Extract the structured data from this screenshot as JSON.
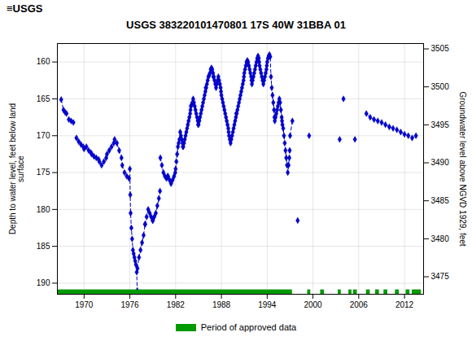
{
  "chart_data": {
    "type": "line",
    "title": "USGS 383220101470801 17S 40W 31BBA 01",
    "annotations": [
      "≡USGS"
    ],
    "ylabel": "Depth to water level, feet below land\nsurface",
    "y2label": "Groundwater level above NGVD 1929, feet",
    "xlim": [
      1966.5,
      2014.5
    ],
    "xticks": [
      1970,
      1976,
      1982,
      1988,
      1994,
      2000,
      2006,
      2012
    ],
    "ylim": [
      191.5,
      157.5
    ],
    "yticks": [
      160,
      165,
      170,
      175,
      180,
      185,
      190
    ],
    "y2lim": [
      3472.7,
      3505.7
    ],
    "y2ticks": [
      3475,
      3480,
      3485,
      3490,
      3495,
      3500,
      3505
    ],
    "grid": true,
    "legend": "bottom",
    "series": [
      {
        "type": "line",
        "color": "#0000cc",
        "line_style": "dashed",
        "marker": "diamond",
        "x": [
          1967.0,
          1967.3,
          1967.5,
          1967.7,
          null,
          1968.0,
          1968.3,
          1968.6,
          null,
          1969.0,
          1969.3,
          1969.6,
          1969.9,
          null,
          1970.0,
          1970.3,
          1970.6,
          1970.9,
          null,
          1971.0,
          1971.3,
          1971.6,
          1971.9,
          null,
          1972.0,
          1972.3,
          1972.6,
          1972.9,
          null,
          1973.0,
          1973.3,
          1973.6,
          1973.9,
          null,
          1974.0,
          1974.3,
          1974.6,
          1974.9,
          null,
          1975.0,
          1975.3,
          1975.6,
          1975.9,
          null,
          1976.0,
          1976.05,
          1976.1,
          1976.2,
          1976.3,
          1976.4,
          1976.5,
          1976.6,
          1976.7,
          1976.8,
          1976.9,
          1976.97,
          null,
          1977.0,
          1977.2,
          1977.4,
          1977.6,
          1977.8,
          1978.0,
          null,
          1978.0,
          1978.2,
          1978.4,
          1978.6,
          1978.8,
          1979.0,
          null,
          1979.0,
          1979.2,
          1979.4,
          1979.6,
          1979.8,
          1979.95,
          null,
          1980.0,
          1980.2,
          1980.4,
          1980.6,
          1980.8,
          1980.95,
          null,
          1981.0,
          1981.2,
          1981.4,
          1981.6,
          1981.8,
          1981.95,
          null,
          1982.0,
          1982.1,
          1982.2,
          1982.3,
          1982.4,
          1982.5,
          1982.6,
          1982.7,
          1982.8,
          1982.9,
          1982.95,
          null,
          1983.0,
          1983.1,
          1983.2,
          1983.3,
          1983.4,
          1983.5,
          1983.6,
          1983.7,
          1983.8,
          1983.9,
          1983.95,
          null,
          1984.0,
          1984.1,
          1984.2,
          1984.3,
          1984.4,
          1984.5,
          1984.6,
          1984.7,
          1984.8,
          1984.9,
          1984.95,
          null,
          1985.0,
          1985.1,
          1985.2,
          1985.3,
          1985.4,
          1985.5,
          1985.6,
          1985.7,
          1985.8,
          1985.9,
          1985.95,
          null,
          1986.0,
          1986.1,
          1986.2,
          1986.3,
          1986.4,
          1986.5,
          1986.6,
          1986.7,
          1986.8,
          1986.9,
          1986.95,
          null,
          1987.0,
          1987.1,
          1987.2,
          1987.3,
          1987.4,
          1987.5,
          1987.6,
          1987.7,
          1987.8,
          1987.9,
          1987.95,
          null,
          1988.0,
          1988.1,
          1988.2,
          1988.3,
          1988.4,
          1988.5,
          1988.6,
          1988.7,
          1988.8,
          1988.9,
          1988.95,
          null,
          1989.0,
          1989.1,
          1989.2,
          1989.3,
          1989.4,
          1989.5,
          1989.6,
          1989.7,
          1989.8,
          1989.9,
          1989.95,
          null,
          1990.0,
          1990.1,
          1990.2,
          1990.3,
          1990.4,
          1990.5,
          1990.6,
          1990.7,
          1990.8,
          1990.9,
          1990.95,
          null,
          1991.0,
          1991.1,
          1991.2,
          1991.3,
          1991.4,
          1991.5,
          1991.6,
          1991.7,
          1991.8,
          1991.9,
          1991.95,
          null,
          1992.0,
          1992.1,
          1992.2,
          1992.3,
          1992.4,
          1992.5,
          1992.6,
          1992.7,
          1992.8,
          1992.9,
          1992.95,
          null,
          1993.0,
          1993.1,
          1993.2,
          1993.3,
          1993.4,
          1993.5,
          1993.6,
          1993.7,
          1993.8,
          1993.9,
          1993.95,
          null,
          1994.0,
          1994.1,
          1994.2,
          1994.3,
          1994.4,
          1994.5,
          1994.6,
          1994.7,
          1994.8,
          1994.9,
          1994.95,
          null,
          1995.0,
          1995.1,
          1995.2,
          1995.3,
          1995.4,
          1995.5,
          1995.6,
          1995.7,
          1995.8,
          1995.9,
          1995.95,
          null,
          1996.0,
          1996.1,
          1996.2,
          1996.3,
          1996.4,
          1996.5,
          1996.6,
          1996.7,
          1996.8,
          1996.9,
          1996.95,
          null,
          1997.0,
          1997.3,
          null,
          1998.0,
          null,
          1999.5,
          null,
          2003.5,
          null,
          2004.0,
          null,
          2005.5,
          null,
          2007.0,
          2007.5,
          2008.0,
          2008.5,
          2009.0,
          2009.5,
          2010.0,
          2010.5,
          2011.0,
          2011.5,
          2012.0,
          2012.5,
          2013.0,
          2013.5
        ],
        "values": [
          165.1,
          166.5,
          166.8,
          167.0,
          null,
          167.8,
          168.0,
          168.2,
          null,
          170.3,
          170.8,
          171.2,
          171.5,
          null,
          171.8,
          171.5,
          172.0,
          172.3,
          null,
          172.5,
          172.8,
          173.0,
          173.2,
          null,
          173.5,
          174.0,
          173.5,
          173.0,
          null,
          172.5,
          172.0,
          171.5,
          171.0,
          null,
          170.5,
          171.0,
          172.0,
          173.0,
          null,
          174.0,
          175.0,
          175.5,
          175.8,
          null,
          174.5,
          178.0,
          180.5,
          182.5,
          184.0,
          185.5,
          186.0,
          186.5,
          187.0,
          187.5,
          188.5,
          191.0,
          null,
          188.0,
          186.5,
          185.5,
          184.5,
          183.5,
          182.0,
          null,
          182.0,
          181.0,
          180.0,
          180.5,
          181.0,
          181.5,
          null,
          181.5,
          181.0,
          180.5,
          179.5,
          178.5,
          177.5,
          null,
          173.0,
          174.0,
          175.0,
          175.5,
          175.8,
          175.5,
          null,
          175.5,
          176.0,
          176.5,
          176.0,
          175.5,
          175.0,
          null,
          174.5,
          173.5,
          172.5,
          171.5,
          171.0,
          170.5,
          169.5,
          170.0,
          170.5,
          171.0,
          171.5,
          null,
          171.5,
          171.0,
          170.5,
          170.0,
          169.5,
          169.0,
          168.5,
          168.0,
          167.5,
          167.0,
          166.5,
          null,
          166.0,
          165.8,
          165.5,
          165.0,
          165.5,
          166.0,
          166.5,
          167.0,
          167.5,
          168.0,
          168.5,
          null,
          168.5,
          168.0,
          167.5,
          167.0,
          166.5,
          166.0,
          165.5,
          165.0,
          164.5,
          164.0,
          163.5,
          null,
          163.5,
          163.0,
          162.5,
          162.0,
          161.8,
          161.5,
          161.0,
          160.8,
          161.0,
          161.5,
          162.0,
          null,
          162.0,
          162.5,
          163.0,
          163.5,
          163.0,
          162.5,
          162.0,
          162.5,
          163.0,
          163.5,
          164.0,
          null,
          164.5,
          165.0,
          165.5,
          166.0,
          166.5,
          167.0,
          167.5,
          168.0,
          168.5,
          169.0,
          169.5,
          null,
          170.0,
          170.5,
          171.0,
          170.5,
          170.0,
          169.5,
          169.0,
          168.5,
          168.0,
          167.5,
          167.0,
          null,
          167.0,
          166.5,
          166.0,
          165.5,
          165.0,
          164.5,
          164.0,
          163.5,
          163.0,
          162.5,
          162.0,
          null,
          161.5,
          161.0,
          160.5,
          160.0,
          159.8,
          160.0,
          160.5,
          161.0,
          161.5,
          162.0,
          162.5,
          null,
          163.0,
          162.5,
          162.0,
          161.5,
          161.0,
          160.5,
          160.0,
          159.5,
          159.2,
          159.5,
          160.0,
          null,
          160.5,
          161.0,
          161.5,
          162.0,
          162.5,
          163.0,
          162.5,
          162.0,
          161.5,
          161.0,
          160.5,
          null,
          160.0,
          159.5,
          159.2,
          159.0,
          159.3,
          162.0,
          163.5,
          164.5,
          165.5,
          166.5,
          167.5,
          null,
          168.0,
          167.5,
          167.0,
          166.5,
          166.0,
          165.5,
          165.0,
          165.5,
          166.5,
          167.5,
          168.0,
          null,
          168.5,
          169.0,
          170.0,
          171.0,
          172.0,
          173.0,
          174.0,
          175.0,
          174.0,
          173.0,
          172.0,
          null,
          170.0,
          168.0,
          null,
          181.5,
          null,
          170.0,
          null,
          170.5,
          null,
          165.0,
          null,
          170.5,
          null,
          167.0,
          167.5,
          167.8,
          168.0,
          168.2,
          168.5,
          168.8,
          169.0,
          169.2,
          169.5,
          169.8,
          170.0,
          170.3,
          170.0
        ]
      },
      {
        "type": "bar",
        "name": "Period of approved data",
        "color": "#009900",
        "y": 191.2,
        "height": 0.6,
        "ranges": [
          [
            1966.5,
            1997.3
          ],
          [
            1999.3,
            1999.7
          ],
          [
            2001.0,
            2001.5
          ],
          [
            2003.3,
            2003.7
          ],
          [
            2004.7,
            2005.1
          ],
          [
            2005.3,
            2005.8
          ],
          [
            2007.0,
            2007.5
          ],
          [
            2008.2,
            2008.7
          ],
          [
            2009.3,
            2009.8
          ],
          [
            2010.8,
            2011.3
          ],
          [
            2012.2,
            2012.7
          ],
          [
            2013.0,
            2014.2
          ]
        ]
      }
    ]
  }
}
